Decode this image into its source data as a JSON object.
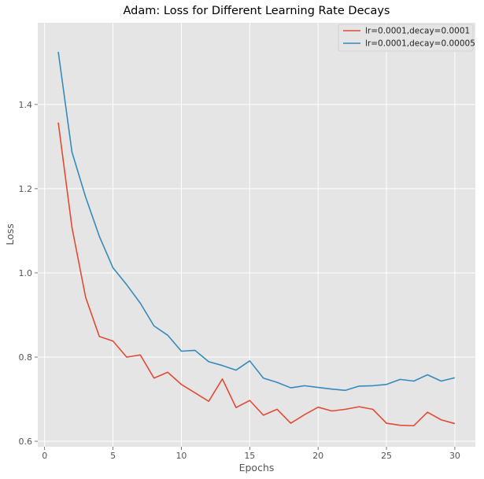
{
  "chart_data": {
    "type": "line",
    "title": "Adam: Loss for Different Learning Rate Decays",
    "xlabel": "Epochs",
    "ylabel": "Loss",
    "xlim": [
      -0.5,
      31.5
    ],
    "ylim": [
      0.587,
      1.594
    ],
    "xticks": [
      0,
      5,
      10,
      15,
      20,
      25,
      30
    ],
    "yticks": [
      0.6,
      0.8,
      1.0,
      1.2,
      1.4
    ],
    "ytick_labels": [
      "0.6",
      "0.8",
      "1.0",
      "1.2",
      "1.4"
    ],
    "grid": true,
    "legend_position": "top-right",
    "background": "#e5e5e5",
    "x": [
      1,
      2,
      3,
      4,
      5,
      6,
      7,
      8,
      9,
      10,
      11,
      12,
      13,
      14,
      15,
      16,
      17,
      18,
      19,
      20,
      21,
      22,
      23,
      24,
      25,
      26,
      27,
      28,
      29,
      30
    ],
    "series": [
      {
        "name": "lr=0.0001,decay=0.0001",
        "color": "#e24a33",
        "values": [
          1.357,
          1.108,
          0.942,
          0.849,
          0.838,
          0.8,
          0.805,
          0.75,
          0.764,
          0.735,
          0.715,
          0.695,
          0.748,
          0.68,
          0.697,
          0.662,
          0.676,
          0.643,
          0.663,
          0.681,
          0.672,
          0.676,
          0.682,
          0.676,
          0.643,
          0.638,
          0.637,
          0.669,
          0.651,
          0.642
        ]
      },
      {
        "name": "lr=0.0001,decay=0.00005",
        "color": "#348abd",
        "values": [
          1.525,
          1.287,
          1.18,
          1.087,
          1.012,
          0.972,
          0.928,
          0.874,
          0.852,
          0.814,
          0.816,
          0.789,
          0.78,
          0.769,
          0.791,
          0.75,
          0.74,
          0.727,
          0.732,
          0.728,
          0.724,
          0.721,
          0.731,
          0.732,
          0.735,
          0.747,
          0.743,
          0.758,
          0.743,
          0.751
        ]
      }
    ]
  }
}
